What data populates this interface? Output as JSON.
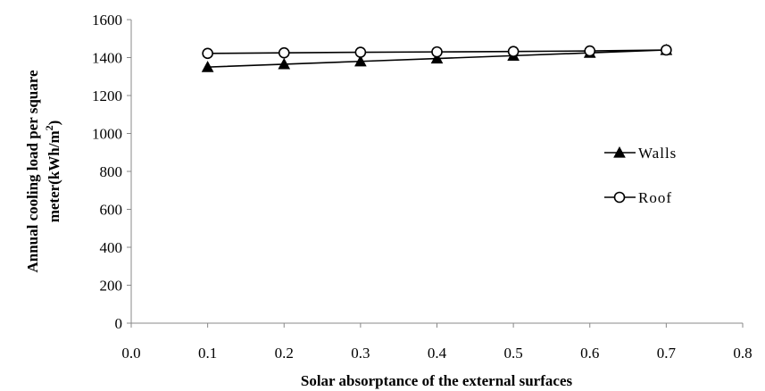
{
  "chart_data": {
    "type": "line",
    "xlabel": "Solar absorptance of the external surfaces",
    "ylabel_line1": "Annual cooling load per square",
    "ylabel_line2_prefix": "meter(kWh/m",
    "ylabel_line2_sup": "2",
    "ylabel_line2_suffix": ")",
    "xlim": [
      0.0,
      0.8
    ],
    "ylim": [
      0,
      1600
    ],
    "x_ticks": [
      0.0,
      0.1,
      0.2,
      0.3,
      0.4,
      0.5,
      0.6,
      0.7,
      0.8
    ],
    "x_tick_labels": [
      "0.0",
      "0.1",
      "0.2",
      "0.3",
      "0.4",
      "0.5",
      "0.6",
      "0.7",
      "0.8"
    ],
    "y_ticks": [
      0,
      200,
      400,
      600,
      800,
      1000,
      1200,
      1400,
      1600
    ],
    "y_tick_labels": [
      "0",
      "200",
      "400",
      "600",
      "800",
      "1000",
      "1200",
      "1400",
      "1600"
    ],
    "grid": false,
    "legend_position": "right",
    "series": [
      {
        "name": "Walls",
        "marker": "filled-triangle",
        "x": [
          0.1,
          0.2,
          0.3,
          0.4,
          0.5,
          0.6,
          0.7
        ],
        "y": [
          1350,
          1365,
          1380,
          1395,
          1410,
          1425,
          1440
        ]
      },
      {
        "name": "Roof",
        "marker": "open-circle",
        "x": [
          0.1,
          0.2,
          0.3,
          0.4,
          0.5,
          0.6,
          0.7
        ],
        "y": [
          1422,
          1425,
          1428,
          1430,
          1432,
          1435,
          1440
        ]
      }
    ],
    "colors": {
      "line": "#000000",
      "background": "#ffffff"
    }
  }
}
